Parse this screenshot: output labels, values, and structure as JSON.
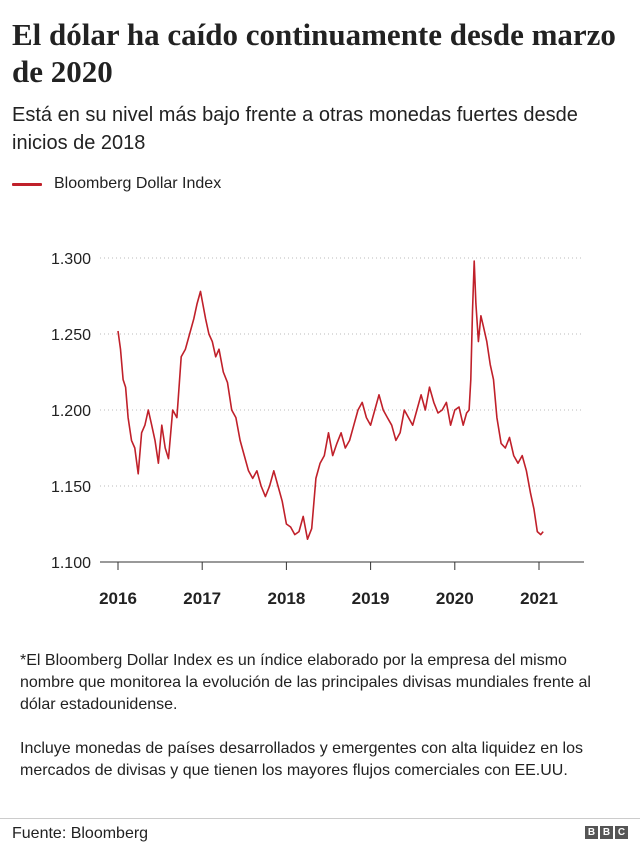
{
  "header": {
    "title": "El dólar ha caído continuamente desde marzo de 2020",
    "subtitle": "Está en su nivel más bajo frente a otras monedas fuertes desde inicios de 2018"
  },
  "legend": {
    "label": "Bloomberg Dollar Index",
    "color": "#c0202a"
  },
  "chart_data": {
    "type": "line",
    "title": "El dólar ha caído continuamente desde marzo de 2020",
    "subtitle": "Está en su nivel más bajo frente a otras monedas fuertes desde inicios de 2018",
    "xlabel": "",
    "ylabel": "",
    "xlim": [
      2016,
      2021.3
    ],
    "ylim": [
      1.1,
      1.3
    ],
    "y_ticks": [
      "1.100",
      "1.150",
      "1.200",
      "1.250",
      "1.300"
    ],
    "x_ticks": [
      "2016",
      "2017",
      "2018",
      "2019",
      "2020",
      "2021"
    ],
    "grid": "horizontal dotted",
    "legend_position": "top-left",
    "series": [
      {
        "name": "Bloomberg Dollar Index",
        "color": "#c0202a",
        "x": [
          2016.0,
          2016.03,
          2016.06,
          2016.09,
          2016.12,
          2016.16,
          2016.2,
          2016.24,
          2016.28,
          2016.32,
          2016.36,
          2016.4,
          2016.44,
          2016.48,
          2016.52,
          2016.56,
          2016.6,
          2016.65,
          2016.7,
          2016.75,
          2016.8,
          2016.85,
          2016.9,
          2016.94,
          2016.98,
          2017.0,
          2017.04,
          2017.08,
          2017.12,
          2017.16,
          2017.2,
          2017.25,
          2017.3,
          2017.35,
          2017.4,
          2017.45,
          2017.5,
          2017.55,
          2017.6,
          2017.65,
          2017.7,
          2017.75,
          2017.8,
          2017.85,
          2017.9,
          2017.95,
          2018.0,
          2018.05,
          2018.1,
          2018.15,
          2018.2,
          2018.25,
          2018.3,
          2018.35,
          2018.4,
          2018.45,
          2018.5,
          2018.55,
          2018.6,
          2018.65,
          2018.7,
          2018.75,
          2018.8,
          2018.85,
          2018.9,
          2018.95,
          2019.0,
          2019.05,
          2019.1,
          2019.15,
          2019.2,
          2019.25,
          2019.3,
          2019.35,
          2019.4,
          2019.45,
          2019.5,
          2019.55,
          2019.6,
          2019.65,
          2019.7,
          2019.75,
          2019.8,
          2019.85,
          2019.9,
          2019.95,
          2020.0,
          2020.05,
          2020.1,
          2020.14,
          2020.17,
          2020.19,
          2020.21,
          2020.23,
          2020.25,
          2020.28,
          2020.31,
          2020.34,
          2020.38,
          2020.42,
          2020.46,
          2020.5,
          2020.55,
          2020.6,
          2020.65,
          2020.7,
          2020.75,
          2020.8,
          2020.85,
          2020.9,
          2020.94,
          2020.98,
          2021.02,
          2021.05
        ],
        "y": [
          1.252,
          1.24,
          1.22,
          1.215,
          1.195,
          1.18,
          1.175,
          1.158,
          1.185,
          1.19,
          1.2,
          1.19,
          1.18,
          1.165,
          1.19,
          1.175,
          1.168,
          1.2,
          1.195,
          1.235,
          1.24,
          1.25,
          1.26,
          1.27,
          1.278,
          1.272,
          1.26,
          1.25,
          1.245,
          1.235,
          1.24,
          1.225,
          1.218,
          1.2,
          1.195,
          1.18,
          1.17,
          1.16,
          1.155,
          1.16,
          1.15,
          1.143,
          1.15,
          1.16,
          1.15,
          1.14,
          1.125,
          1.123,
          1.118,
          1.12,
          1.13,
          1.115,
          1.122,
          1.155,
          1.165,
          1.17,
          1.185,
          1.17,
          1.178,
          1.185,
          1.175,
          1.18,
          1.19,
          1.2,
          1.205,
          1.195,
          1.19,
          1.2,
          1.21,
          1.2,
          1.195,
          1.19,
          1.18,
          1.185,
          1.2,
          1.195,
          1.19,
          1.2,
          1.21,
          1.2,
          1.215,
          1.205,
          1.198,
          1.2,
          1.205,
          1.19,
          1.2,
          1.202,
          1.19,
          1.198,
          1.2,
          1.22,
          1.265,
          1.298,
          1.27,
          1.245,
          1.262,
          1.255,
          1.245,
          1.23,
          1.22,
          1.195,
          1.178,
          1.175,
          1.182,
          1.17,
          1.165,
          1.17,
          1.16,
          1.145,
          1.135,
          1.12,
          1.118,
          1.12
        ]
      }
    ]
  },
  "notes": [
    "*El Bloomberg Dollar Index es un índice elaborado por la empresa del mismo nombre que monitorea la evolución de las principales divisas mundiales frente al dólar estadounidense.",
    "Incluye monedas de países desarrollados y emergentes con alta liquidez en los mercados de divisas y que tienen los mayores flujos comerciales con EE.UU."
  ],
  "footer": {
    "source": "Fuente: Bloomberg",
    "logo_letters": [
      "B",
      "B",
      "C"
    ]
  }
}
